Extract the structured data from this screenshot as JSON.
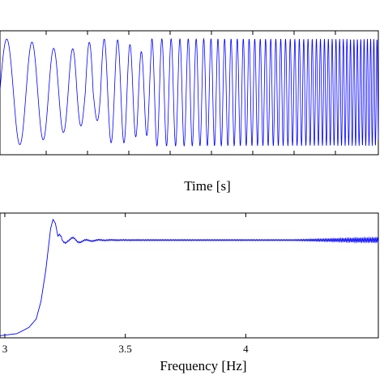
{
  "chart_data": [
    {
      "type": "line",
      "xlabel": "Time [s]",
      "ylabel": "",
      "title": "",
      "grid": false,
      "series": [
        {
          "color": "#0000ff",
          "description_of_shape": "dense oscillating chirp signal of constant amplitude with an amplitude dip near the early part"
        }
      ]
    },
    {
      "type": "line",
      "xlabel": "Frequency [Hz]",
      "ylabel": "",
      "title": "",
      "xlim": [
        2.98,
        4.55
      ],
      "x_ticks": [
        "3",
        "3.5",
        "4"
      ],
      "x_tick_values": [
        3,
        3.5,
        4
      ],
      "grid": false,
      "series": [
        {
          "color": "#0000ff",
          "x": [
            2.98,
            3.05,
            3.1,
            3.13,
            3.15,
            3.17,
            3.18,
            3.19,
            3.2,
            3.21,
            3.22,
            3.24,
            3.26,
            3.3,
            3.4,
            3.6,
            3.8,
            4.0,
            4.2,
            4.4,
            4.55
          ],
          "y": [
            0.02,
            0.04,
            0.1,
            0.18,
            0.35,
            0.65,
            0.85,
            1.05,
            1.14,
            1.1,
            0.98,
            0.9,
            0.96,
            0.93,
            0.94,
            0.94,
            0.94,
            0.94,
            0.94,
            0.94,
            0.94
          ]
        }
      ]
    }
  ]
}
